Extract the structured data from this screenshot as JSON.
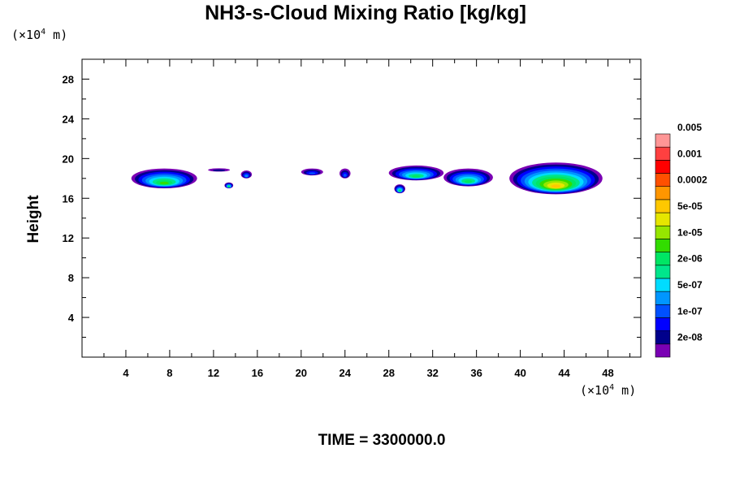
{
  "chart_data": {
    "type": "heatmap",
    "title": "NH3-s-Cloud Mixing Ratio [kg/kg]",
    "ylabel": "Height",
    "x_unit": "(×10",
    "x_unit_exp": "4",
    "x_unit_tail": " m)",
    "y_unit": "(×10",
    "y_unit_exp": "4",
    "y_unit_tail": " m)",
    "footer": "TIME = 3300000.0",
    "xlim": [
      0,
      51
    ],
    "ylim": [
      0,
      30
    ],
    "xticks": [
      "4",
      "8",
      "12",
      "16",
      "20",
      "24",
      "28",
      "32",
      "36",
      "40",
      "44",
      "48"
    ],
    "yticks": [
      "4",
      "8",
      "12",
      "16",
      "20",
      "24",
      "28"
    ],
    "colorbar": {
      "colors": [
        "#7a00b4",
        "#00008c",
        "#0000ff",
        "#0050ff",
        "#0096ff",
        "#00dcff",
        "#00e68c",
        "#00e664",
        "#32dc00",
        "#96e600",
        "#e6e600",
        "#ffc800",
        "#ff9600",
        "#ff5000",
        "#ff0000",
        "#ff4040",
        "#ff9696"
      ],
      "labels": [
        "2e-08",
        "1e-07",
        "5e-07",
        "2e-06",
        "1e-05",
        "5e-05",
        "0.0002",
        "0.001",
        "0.005"
      ]
    },
    "cloud_features": [
      {
        "x": [
          4.5,
          10.5
        ],
        "y_top": 19.0,
        "y_bottom": 17.0,
        "max_level": 8
      },
      {
        "x": [
          11.5,
          13.5
        ],
        "y_top": 19.0,
        "y_bottom": 18.7,
        "max_level": 1
      },
      {
        "x": [
          13.0,
          13.8
        ],
        "y_top": 17.6,
        "y_bottom": 17.0,
        "max_level": 7
      },
      {
        "x": [
          14.5,
          15.5
        ],
        "y_top": 18.8,
        "y_bottom": 18.0,
        "max_level": 4
      },
      {
        "x": [
          20.0,
          22.0
        ],
        "y_top": 19.0,
        "y_bottom": 18.3,
        "max_level": 3
      },
      {
        "x": [
          23.5,
          24.5
        ],
        "y_top": 19.0,
        "y_bottom": 18.0,
        "max_level": 3
      },
      {
        "x": [
          28.0,
          33.0
        ],
        "y_top": 19.3,
        "y_bottom": 17.8,
        "max_level": 7
      },
      {
        "x": [
          28.5,
          29.5
        ],
        "y_top": 17.4,
        "y_bottom": 16.5,
        "max_level": 7
      },
      {
        "x": [
          33.0,
          37.5
        ],
        "y_top": 19.0,
        "y_bottom": 17.2,
        "max_level": 7
      },
      {
        "x": [
          39.0,
          47.5
        ],
        "y_top": 19.6,
        "y_bottom": 16.4,
        "max_level": 11
      }
    ]
  }
}
